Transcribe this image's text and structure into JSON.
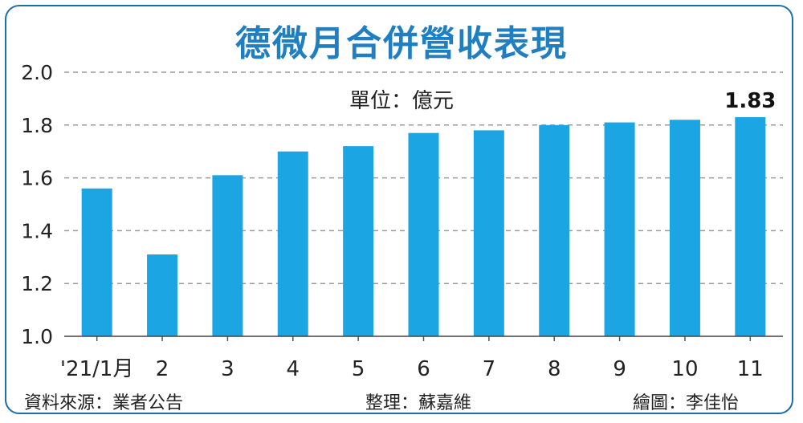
{
  "chart_data": {
    "type": "bar",
    "title": "德微月合併營收表現",
    "unit_label": "單位：億元",
    "categories": [
      "'21/1月",
      "2",
      "3",
      "4",
      "5",
      "6",
      "7",
      "8",
      "9",
      "10",
      "11"
    ],
    "values": [
      1.56,
      1.31,
      1.61,
      1.7,
      1.72,
      1.77,
      1.78,
      1.8,
      1.81,
      1.82,
      1.83
    ],
    "highlight": {
      "index": 10,
      "label": "1.83"
    },
    "ylim": [
      1.0,
      2.0
    ],
    "yticks": [
      "1.0",
      "1.2",
      "1.4",
      "1.6",
      "1.8",
      "2.0"
    ],
    "grid": true,
    "bar_color": "#1ba6e3"
  },
  "footer": {
    "source": "資料來源：業者公告",
    "editor": "整理：蘇嘉維",
    "illustrator": "繪圖：李佳怡"
  },
  "colors": {
    "title": "#1f7fc1",
    "border": "#1b6ea8",
    "grid": "#9a9a9a"
  }
}
